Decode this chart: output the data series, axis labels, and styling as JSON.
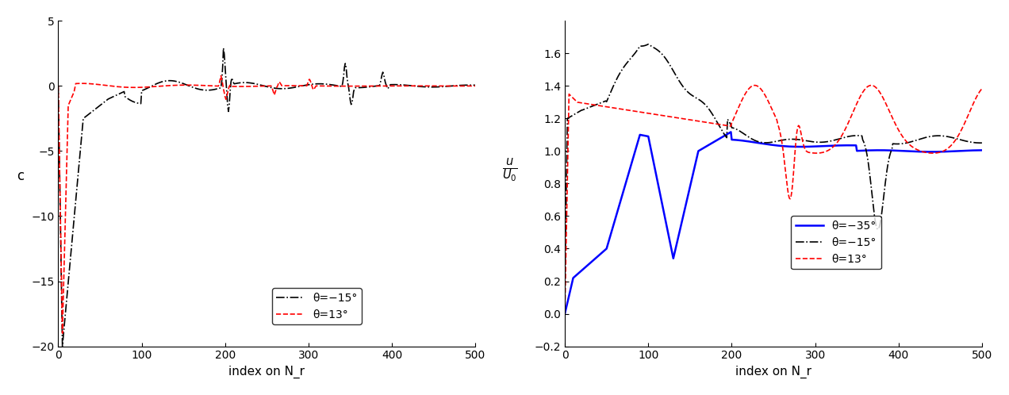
{
  "left_ylabel": "c",
  "xlabel": "index on N_r",
  "left_ylim": [
    -20,
    5
  ],
  "right_ylim": [
    -0.2,
    1.8
  ],
  "xlim": [
    0,
    500
  ],
  "left_yticks": [
    -20,
    -15,
    -10,
    -5,
    0,
    5
  ],
  "right_yticks": [
    -0.2,
    0.0,
    0.2,
    0.4,
    0.6,
    0.8,
    1.0,
    1.2,
    1.4,
    1.6
  ],
  "xticks": [
    0,
    100,
    200,
    300,
    400,
    500
  ],
  "left_legend": [
    {
      "label": "θ=−15°",
      "color": "black",
      "linestyle": "dashdot"
    },
    {
      "label": "θ=13°",
      "color": "red",
      "linestyle": "dashed"
    }
  ],
  "right_legend": [
    {
      "label": "θ=−35°",
      "color": "blue",
      "linestyle": "solid"
    },
    {
      "label": "θ=−15°",
      "color": "black",
      "linestyle": "dashdot"
    },
    {
      "label": "θ=13°",
      "color": "red",
      "linestyle": "dashed"
    }
  ],
  "background_color": "#ffffff"
}
